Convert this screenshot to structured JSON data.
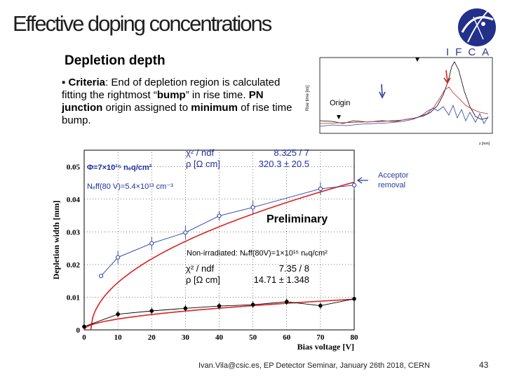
{
  "slide": {
    "title": "Effective doping concentrations",
    "logo_text": "IFCA",
    "section_title": "Depletion depth",
    "criteria_bullet": "▪",
    "criteria_head": "Criteria",
    "criteria_1": ": End of depletion region is calculated fitting the rightmost “",
    "criteria_bump": "bump",
    "criteria_2": "” in rise time. ",
    "criteria_pn": "PN junction",
    "criteria_3": " origin assigned to ",
    "criteria_min": "minimum",
    "criteria_4": " of rise time bump.",
    "footer": "Ivan.Vila@csic.es, EP Detector Seminar, January 26th 2018, CERN",
    "page_number": "43"
  },
  "inset": {
    "ylabel": "Rise time [ns]",
    "xlabel": "z [mm]",
    "origin_label": "Origin",
    "y_ticks": [
      "0.35",
      "0.3",
      "0.25",
      "0.2",
      "0.15",
      "0.1",
      "0.05"
    ],
    "x_ticks": [
      "1.42",
      "1.43",
      "1.44",
      "1.45",
      "1.46",
      "1.47",
      "1.48"
    ]
  },
  "annotations": {
    "acceptor_1": "Acceptor",
    "acceptor_2": "removal",
    "preliminary": "Preliminary",
    "phi": "Φ=7×10¹⁵ nₑq/cm²",
    "neff_irr": "Nₑff(80 V)=5.4×10¹³ cm⁻³",
    "non_irradiated": "Non-irradiated: Nₑff(80V)=1×10¹⁵ nₑq/cm²"
  },
  "fit_irradiated": {
    "chi2_label": "χ² / ndf",
    "chi2_value": "8.325 / 7",
    "rho_label": "ρ [Ω cm]",
    "rho_value": "320.3 ±  20.5"
  },
  "fit_non_irradiated": {
    "chi2_label": "χ² / ndf",
    "chi2_value": "7.35 / 8",
    "rho_label": "ρ [Ω cm]",
    "rho_value": "14.71 ± 1.348"
  },
  "chart_data": {
    "type": "scatter",
    "xlabel": "Bias voltage [V]",
    "ylabel": "Depletion width [mm]",
    "xlim": [
      0,
      80
    ],
    "ylim": [
      0,
      0.055
    ],
    "x_ticks": [
      "0",
      "10",
      "20",
      "30",
      "40",
      "50",
      "60",
      "70",
      "80"
    ],
    "y_ticks": [
      "0",
      "0.01",
      "0.02",
      "0.03",
      "0.04",
      "0.05"
    ],
    "grid": true,
    "series": [
      {
        "name": "irradiated",
        "color": "#2b3ea0",
        "x": [
          5,
          10,
          20,
          30,
          40,
          50,
          70,
          80
        ],
        "y": [
          0.0165,
          0.0222,
          0.0265,
          0.0298,
          0.0349,
          0.0375,
          0.0432,
          0.0443
        ],
        "err": [
          0.0005,
          0.002,
          0.002,
          0.002,
          0.0015,
          0.002,
          0.002,
          0.0015
        ]
      },
      {
        "name": "non-irradiated",
        "color": "#000000",
        "x": [
          0,
          10,
          20,
          30,
          40,
          50,
          60,
          70,
          80
        ],
        "y": [
          0.001,
          0.0048,
          0.0058,
          0.0066,
          0.0073,
          0.0077,
          0.0086,
          0.0074,
          0.0095
        ],
        "err": [
          0.0004,
          0.001,
          0.001,
          0.001,
          0.001,
          0.001,
          0.001,
          0.001,
          0.001
        ]
      }
    ],
    "fits": [
      {
        "name": "irradiated fit",
        "color": "#e02020",
        "x0": 2,
        "coef": 0.00512
      },
      {
        "name": "non-irradiated fit",
        "color": "#e02020",
        "x0": 0,
        "coef": 0.00105
      }
    ]
  }
}
